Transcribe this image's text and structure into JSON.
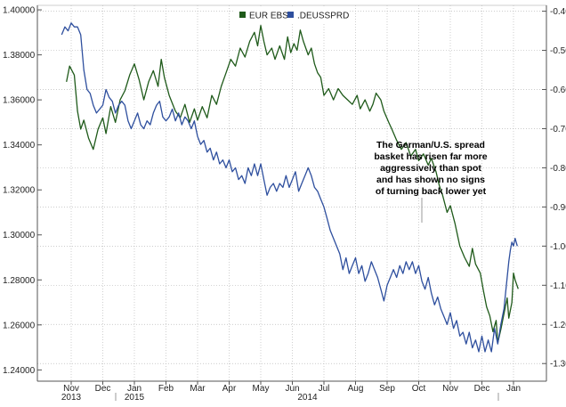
{
  "chart_data": {
    "type": "line",
    "legend": {
      "placement": "top-center",
      "entries": [
        "EUR EBS",
        ".DEUSSPRD"
      ]
    },
    "colors": {
      "eur": "#1f5a1a",
      "spread": "#2e4f9e",
      "axis": "#555555",
      "grid": "#bbbbbb"
    },
    "x_axis": {
      "months": [
        "Nov",
        "Dec",
        "Jan",
        "Feb",
        "Mar",
        "Apr",
        "May",
        "Jun",
        "Jul",
        "Aug",
        "Sep",
        "Oct",
        "Nov",
        "Dec",
        "Jan"
      ],
      "years": [
        {
          "label": "2013",
          "under": "Nov"
        },
        {
          "label": "2014",
          "under": "Jun"
        },
        {
          "label": "2015",
          "under": "Jan"
        }
      ]
    },
    "y_left": {
      "ticks": [
        "1.24000",
        "1.26000",
        "1.28000",
        "1.30000",
        "1.32000",
        "1.34000",
        "1.36000",
        "1.38000",
        "1.40000"
      ],
      "ylim": [
        1.235,
        1.402
      ]
    },
    "y_right": {
      "ticks": [
        "-0.40",
        "-0.50",
        "-0.60",
        "-0.70",
        "-0.80",
        "-0.90",
        "-1.00",
        "-1.10",
        "-1.20",
        "-1.30"
      ],
      "ylim": [
        -1.345,
        -0.385
      ]
    },
    "annotation": {
      "lines": [
        "The German/U.S. spread",
        "basket has risen far more",
        "aggressively than spot",
        "and has shown no signs",
        "of turning back lower yet"
      ]
    },
    "series": [
      {
        "name": "EUR EBS",
        "axis": "left",
        "points": [
          [
            -0.15,
            1.368
          ],
          [
            -0.05,
            1.375
          ],
          [
            0.1,
            1.371
          ],
          [
            0.2,
            1.355
          ],
          [
            0.3,
            1.347
          ],
          [
            0.4,
            1.351
          ],
          [
            0.55,
            1.343
          ],
          [
            0.7,
            1.338
          ],
          [
            0.85,
            1.347
          ],
          [
            1.0,
            1.352
          ],
          [
            1.1,
            1.345
          ],
          [
            1.25,
            1.357
          ],
          [
            1.4,
            1.35
          ],
          [
            1.55,
            1.36
          ],
          [
            1.7,
            1.364
          ],
          [
            1.85,
            1.371
          ],
          [
            2.0,
            1.376
          ],
          [
            2.15,
            1.369
          ],
          [
            2.3,
            1.36
          ],
          [
            2.45,
            1.368
          ],
          [
            2.6,
            1.373
          ],
          [
            2.75,
            1.366
          ],
          [
            2.85,
            1.378
          ],
          [
            2.95,
            1.37
          ],
          [
            3.1,
            1.362
          ],
          [
            3.3,
            1.355
          ],
          [
            3.45,
            1.352
          ],
          [
            3.6,
            1.358
          ],
          [
            3.75,
            1.35
          ],
          [
            3.9,
            1.356
          ],
          [
            4.0,
            1.351
          ],
          [
            4.15,
            1.357
          ],
          [
            4.3,
            1.352
          ],
          [
            4.45,
            1.362
          ],
          [
            4.6,
            1.358
          ],
          [
            4.75,
            1.366
          ],
          [
            4.9,
            1.372
          ],
          [
            5.05,
            1.378
          ],
          [
            5.2,
            1.375
          ],
          [
            5.35,
            1.383
          ],
          [
            5.5,
            1.379
          ],
          [
            5.65,
            1.386
          ],
          [
            5.8,
            1.39
          ],
          [
            5.9,
            1.384
          ],
          [
            6.0,
            1.393
          ],
          [
            6.1,
            1.386
          ],
          [
            6.2,
            1.38
          ],
          [
            6.35,
            1.383
          ],
          [
            6.45,
            1.378
          ],
          [
            6.6,
            1.384
          ],
          [
            6.75,
            1.378
          ],
          [
            6.85,
            1.388
          ],
          [
            6.95,
            1.381
          ],
          [
            7.05,
            1.385
          ],
          [
            7.15,
            1.382
          ],
          [
            7.25,
            1.391
          ],
          [
            7.35,
            1.386
          ],
          [
            7.5,
            1.38
          ],
          [
            7.6,
            1.383
          ],
          [
            7.7,
            1.376
          ],
          [
            7.8,
            1.372
          ],
          [
            7.9,
            1.37
          ],
          [
            8.0,
            1.362
          ],
          [
            8.15,
            1.365
          ],
          [
            8.3,
            1.36
          ],
          [
            8.45,
            1.365
          ],
          [
            8.6,
            1.362
          ],
          [
            8.75,
            1.36
          ],
          [
            8.9,
            1.358
          ],
          [
            9.05,
            1.362
          ],
          [
            9.15,
            1.356
          ],
          [
            9.3,
            1.36
          ],
          [
            9.45,
            1.355
          ],
          [
            9.55,
            1.358
          ],
          [
            9.65,
            1.363
          ],
          [
            9.8,
            1.36
          ],
          [
            9.9,
            1.355
          ],
          [
            10.05,
            1.35
          ],
          [
            10.15,
            1.347
          ],
          [
            10.3,
            1.342
          ],
          [
            10.45,
            1.338
          ],
          [
            10.6,
            1.341
          ],
          [
            10.75,
            1.335
          ],
          [
            10.9,
            1.338
          ],
          [
            11.0,
            1.333
          ],
          [
            11.15,
            1.336
          ],
          [
            11.3,
            1.331
          ],
          [
            11.4,
            1.334
          ],
          [
            11.55,
            1.328
          ],
          [
            11.65,
            1.322
          ],
          [
            11.75,
            1.318
          ],
          [
            11.9,
            1.31
          ],
          [
            12.0,
            1.313
          ],
          [
            12.15,
            1.305
          ],
          [
            12.3,
            1.295
          ],
          [
            12.45,
            1.29
          ],
          [
            12.6,
            1.286
          ],
          [
            12.7,
            1.294
          ],
          [
            12.8,
            1.287
          ],
          [
            12.95,
            1.283
          ],
          [
            13.05,
            1.275
          ],
          [
            13.15,
            1.268
          ],
          [
            13.25,
            1.264
          ],
          [
            13.35,
            1.257
          ],
          [
            13.45,
            1.262
          ],
          [
            13.5,
            1.252
          ],
          [
            13.6,
            1.258
          ],
          [
            13.7,
            1.265
          ],
          [
            13.8,
            1.272
          ],
          [
            13.85,
            1.263
          ],
          [
            13.95,
            1.27
          ],
          [
            14.0,
            1.283
          ],
          [
            14.05,
            1.28
          ],
          [
            14.15,
            1.276
          ]
        ]
      },
      {
        "name": ".DEUSSPRD",
        "axis": "right",
        "points": [
          [
            -0.3,
            -0.46
          ],
          [
            -0.2,
            -0.44
          ],
          [
            -0.1,
            -0.45
          ],
          [
            0.0,
            -0.43
          ],
          [
            0.1,
            -0.44
          ],
          [
            0.2,
            -0.44
          ],
          [
            0.3,
            -0.46
          ],
          [
            0.4,
            -0.55
          ],
          [
            0.5,
            -0.6
          ],
          [
            0.6,
            -0.61
          ],
          [
            0.7,
            -0.64
          ],
          [
            0.8,
            -0.66
          ],
          [
            0.9,
            -0.65
          ],
          [
            1.0,
            -0.64
          ],
          [
            1.1,
            -0.6
          ],
          [
            1.2,
            -0.62
          ],
          [
            1.3,
            -0.63
          ],
          [
            1.4,
            -0.66
          ],
          [
            1.5,
            -0.64
          ],
          [
            1.6,
            -0.63
          ],
          [
            1.7,
            -0.64
          ],
          [
            1.8,
            -0.68
          ],
          [
            1.9,
            -0.7
          ],
          [
            2.0,
            -0.68
          ],
          [
            2.1,
            -0.66
          ],
          [
            2.2,
            -0.69
          ],
          [
            2.3,
            -0.7
          ],
          [
            2.4,
            -0.68
          ],
          [
            2.5,
            -0.69
          ],
          [
            2.6,
            -0.66
          ],
          [
            2.7,
            -0.64
          ],
          [
            2.8,
            -0.63
          ],
          [
            2.9,
            -0.67
          ],
          [
            3.0,
            -0.68
          ],
          [
            3.1,
            -0.67
          ],
          [
            3.2,
            -0.65
          ],
          [
            3.3,
            -0.68
          ],
          [
            3.4,
            -0.66
          ],
          [
            3.5,
            -0.69
          ],
          [
            3.6,
            -0.67
          ],
          [
            3.7,
            -0.68
          ],
          [
            3.8,
            -0.7
          ],
          [
            3.9,
            -0.68
          ],
          [
            4.0,
            -0.72
          ],
          [
            4.1,
            -0.74
          ],
          [
            4.2,
            -0.73
          ],
          [
            4.3,
            -0.76
          ],
          [
            4.4,
            -0.75
          ],
          [
            4.5,
            -0.78
          ],
          [
            4.6,
            -0.76
          ],
          [
            4.7,
            -0.79
          ],
          [
            4.8,
            -0.78
          ],
          [
            4.9,
            -0.8
          ],
          [
            5.0,
            -0.78
          ],
          [
            5.1,
            -0.81
          ],
          [
            5.2,
            -0.8
          ],
          [
            5.3,
            -0.83
          ],
          [
            5.4,
            -0.82
          ],
          [
            5.5,
            -0.84
          ],
          [
            5.6,
            -0.8
          ],
          [
            5.7,
            -0.82
          ],
          [
            5.8,
            -0.79
          ],
          [
            5.9,
            -0.82
          ],
          [
            6.0,
            -0.79
          ],
          [
            6.1,
            -0.83
          ],
          [
            6.2,
            -0.87
          ],
          [
            6.3,
            -0.85
          ],
          [
            6.4,
            -0.84
          ],
          [
            6.5,
            -0.86
          ],
          [
            6.6,
            -0.84
          ],
          [
            6.7,
            -0.85
          ],
          [
            6.8,
            -0.82
          ],
          [
            6.9,
            -0.85
          ],
          [
            7.0,
            -0.83
          ],
          [
            7.1,
            -0.81
          ],
          [
            7.2,
            -0.86
          ],
          [
            7.3,
            -0.84
          ],
          [
            7.4,
            -0.82
          ],
          [
            7.5,
            -0.8
          ],
          [
            7.6,
            -0.82
          ],
          [
            7.7,
            -0.85
          ],
          [
            7.8,
            -0.86
          ],
          [
            7.9,
            -0.88
          ],
          [
            8.0,
            -0.9
          ],
          [
            8.1,
            -0.93
          ],
          [
            8.2,
            -0.96
          ],
          [
            8.3,
            -0.98
          ],
          [
            8.4,
            -1.0
          ],
          [
            8.5,
            -1.02
          ],
          [
            8.6,
            -1.06
          ],
          [
            8.7,
            -1.03
          ],
          [
            8.8,
            -1.07
          ],
          [
            8.9,
            -1.05
          ],
          [
            9.0,
            -1.03
          ],
          [
            9.1,
            -1.07
          ],
          [
            9.2,
            -1.05
          ],
          [
            9.3,
            -1.09
          ],
          [
            9.4,
            -1.07
          ],
          [
            9.5,
            -1.04
          ],
          [
            9.6,
            -1.06
          ],
          [
            9.7,
            -1.08
          ],
          [
            9.8,
            -1.11
          ],
          [
            9.9,
            -1.14
          ],
          [
            10.0,
            -1.1
          ],
          [
            10.1,
            -1.08
          ],
          [
            10.2,
            -1.06
          ],
          [
            10.3,
            -1.08
          ],
          [
            10.4,
            -1.05
          ],
          [
            10.5,
            -1.07
          ],
          [
            10.6,
            -1.04
          ],
          [
            10.7,
            -1.06
          ],
          [
            10.8,
            -1.04
          ],
          [
            10.9,
            -1.07
          ],
          [
            11.0,
            -1.05
          ],
          [
            11.1,
            -1.09
          ],
          [
            11.2,
            -1.11
          ],
          [
            11.3,
            -1.08
          ],
          [
            11.4,
            -1.12
          ],
          [
            11.5,
            -1.15
          ],
          [
            11.6,
            -1.13
          ],
          [
            11.7,
            -1.16
          ],
          [
            11.8,
            -1.18
          ],
          [
            11.9,
            -1.2
          ],
          [
            12.0,
            -1.17
          ],
          [
            12.1,
            -1.21
          ],
          [
            12.2,
            -1.19
          ],
          [
            12.3,
            -1.23
          ],
          [
            12.4,
            -1.22
          ],
          [
            12.5,
            -1.25
          ],
          [
            12.6,
            -1.22
          ],
          [
            12.7,
            -1.26
          ],
          [
            12.8,
            -1.24
          ],
          [
            12.9,
            -1.27
          ],
          [
            13.0,
            -1.23
          ],
          [
            13.1,
            -1.27
          ],
          [
            13.2,
            -1.24
          ],
          [
            13.3,
            -1.27
          ],
          [
            13.4,
            -1.21
          ],
          [
            13.5,
            -1.25
          ],
          [
            13.6,
            -1.2
          ],
          [
            13.7,
            -1.16
          ],
          [
            13.75,
            -1.12
          ],
          [
            13.8,
            -1.08
          ],
          [
            13.85,
            -1.04
          ],
          [
            13.9,
            -1.01
          ],
          [
            13.95,
            -0.99
          ],
          [
            14.0,
            -1.0
          ],
          [
            14.05,
            -0.98
          ],
          [
            14.12,
            -1.0
          ]
        ]
      }
    ]
  }
}
